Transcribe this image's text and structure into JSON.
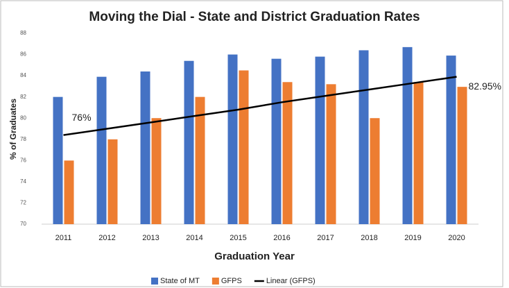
{
  "chart_data": {
    "type": "bar",
    "title": "Moving the Dial - State and District Graduation Rates",
    "x_label": "Graduation Year",
    "y_label": "% of Graduates",
    "categories": [
      "2011",
      "2012",
      "2013",
      "2014",
      "2015",
      "2016",
      "2017",
      "2018",
      "2019",
      "2020"
    ],
    "series": [
      {
        "name": "State of MT",
        "color": "#4472c4",
        "values": [
          82,
          83.9,
          84.4,
          85.4,
          86,
          85.6,
          85.8,
          86.4,
          86.7,
          85.9
        ]
      },
      {
        "name": "GFPS",
        "color": "#ed7d31",
        "values": [
          76,
          78,
          80,
          82,
          84.5,
          83.4,
          83.2,
          80,
          83.4,
          82.95
        ],
        "value_labels": [
          "76%",
          null,
          null,
          null,
          null,
          null,
          null,
          null,
          null,
          "82.95%"
        ]
      },
      {
        "name": "Linear (GFPS)",
        "type": "line",
        "color": "#000000",
        "values": [
          78.4,
          79.0,
          79.6,
          80.2,
          80.8,
          81.5,
          82.1,
          82.7,
          83.3,
          83.9
        ]
      }
    ],
    "ylim": [
      70,
      88
    ],
    "yticks": [
      70,
      72,
      74,
      76,
      78,
      80,
      82,
      84,
      86,
      88
    ],
    "grid": false,
    "legend": "bottom"
  }
}
